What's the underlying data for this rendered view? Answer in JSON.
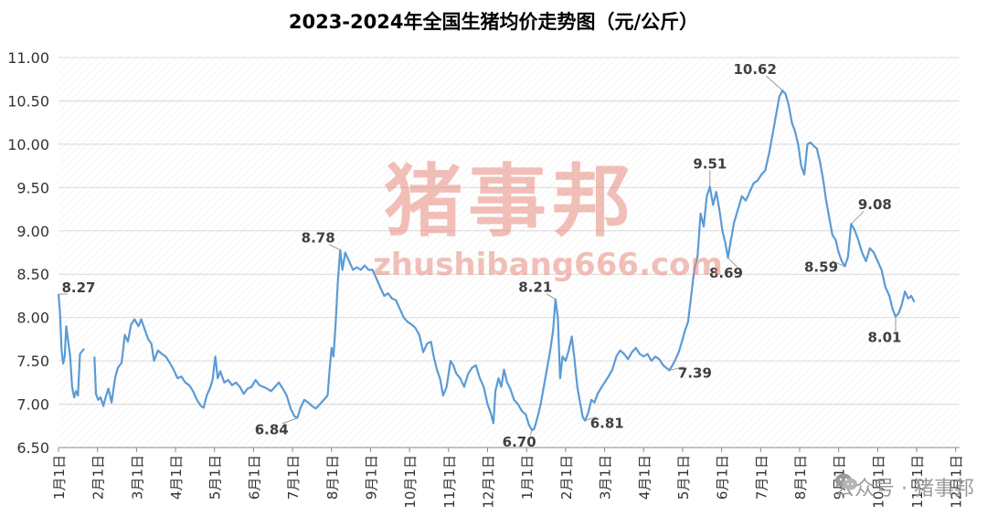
{
  "page": {
    "title": "2023-2024年全国生猪均价走势图（元/公斤）"
  },
  "watermark": {
    "text": "猪事邦",
    "url": "zhushibang666.com"
  },
  "wechat": {
    "label": "公众号 · 猪事邦",
    "icon": "wechat-icon"
  },
  "colors": {
    "line": "#5b9bd5",
    "grid": "#d9d9d9",
    "watermark": "#e98b7f"
  },
  "chart_data": {
    "type": "line",
    "title": "2023-2024年全国生猪均价走势图（元/公斤）",
    "xlabel": "",
    "ylabel": "",
    "ylim": [
      6.5,
      11.0
    ],
    "yticks": [
      "6.50",
      "7.00",
      "7.50",
      "8.00",
      "8.50",
      "9.00",
      "9.50",
      "10.00",
      "10.50",
      "11.00"
    ],
    "grid": true,
    "x_tick_labels": [
      "1月1日",
      "2月1日",
      "3月1日",
      "4月1日",
      "5月1日",
      "6月1日",
      "7月1日",
      "8月1日",
      "9月1日",
      "10月1日",
      "11月1日",
      "12月1日",
      "1月1日",
      "2月1日",
      "3月1日",
      "4月1日",
      "5月1日",
      "6月1日",
      "7月1日",
      "8月1日",
      "9月1日",
      "10月1日",
      "11月1日",
      "12月1日"
    ],
    "month_positions": [
      0,
      1,
      2,
      3,
      4,
      5,
      6,
      7,
      8,
      9,
      10,
      11,
      12,
      13,
      14,
      15,
      16,
      17,
      18,
      19,
      20,
      21,
      22,
      23
    ],
    "series": [
      {
        "values": [
          [
            0.0,
            8.27
          ],
          [
            0.04,
            8.05
          ],
          [
            0.08,
            7.62
          ],
          [
            0.12,
            7.47
          ],
          [
            0.16,
            7.55
          ],
          [
            0.2,
            7.9
          ],
          [
            0.25,
            7.72
          ],
          [
            0.3,
            7.55
          ],
          [
            0.35,
            7.2
          ],
          [
            0.4,
            7.08
          ],
          [
            0.45,
            7.15
          ],
          [
            0.5,
            7.1
          ],
          [
            0.55,
            7.58
          ],
          [
            0.62,
            7.62
          ],
          [
            0.66,
            7.64
          ],
          [
            0.92,
            7.55
          ],
          [
            0.96,
            7.12
          ],
          [
            1.02,
            7.05
          ],
          [
            1.08,
            7.08
          ],
          [
            1.15,
            6.98
          ],
          [
            1.22,
            7.1
          ],
          [
            1.28,
            7.18
          ],
          [
            1.36,
            7.02
          ],
          [
            1.45,
            7.3
          ],
          [
            1.52,
            7.42
          ],
          [
            1.62,
            7.48
          ],
          [
            1.7,
            7.8
          ],
          [
            1.78,
            7.72
          ],
          [
            1.86,
            7.92
          ],
          [
            1.95,
            7.98
          ],
          [
            2.05,
            7.9
          ],
          [
            2.12,
            7.98
          ],
          [
            2.22,
            7.85
          ],
          [
            2.3,
            7.75
          ],
          [
            2.38,
            7.7
          ],
          [
            2.45,
            7.5
          ],
          [
            2.55,
            7.62
          ],
          [
            2.65,
            7.58
          ],
          [
            2.75,
            7.55
          ],
          [
            2.85,
            7.48
          ],
          [
            2.95,
            7.4
          ],
          [
            3.05,
            7.3
          ],
          [
            3.15,
            7.32
          ],
          [
            3.25,
            7.25
          ],
          [
            3.35,
            7.22
          ],
          [
            3.45,
            7.15
          ],
          [
            3.55,
            7.05
          ],
          [
            3.65,
            6.98
          ],
          [
            3.72,
            6.96
          ],
          [
            3.8,
            7.1
          ],
          [
            3.88,
            7.18
          ],
          [
            3.95,
            7.28
          ],
          [
            4.02,
            7.55
          ],
          [
            4.08,
            7.3
          ],
          [
            4.15,
            7.38
          ],
          [
            4.25,
            7.25
          ],
          [
            4.35,
            7.28
          ],
          [
            4.45,
            7.22
          ],
          [
            4.55,
            7.25
          ],
          [
            4.65,
            7.2
          ],
          [
            4.75,
            7.12
          ],
          [
            4.85,
            7.18
          ],
          [
            4.95,
            7.2
          ],
          [
            5.05,
            7.28
          ],
          [
            5.15,
            7.22
          ],
          [
            5.25,
            7.2
          ],
          [
            5.35,
            7.18
          ],
          [
            5.45,
            7.15
          ],
          [
            5.55,
            7.2
          ],
          [
            5.65,
            7.25
          ],
          [
            5.75,
            7.18
          ],
          [
            5.85,
            7.1
          ],
          [
            5.95,
            6.95
          ],
          [
            6.05,
            6.86
          ],
          [
            6.12,
            6.84
          ],
          [
            6.2,
            6.95
          ],
          [
            6.3,
            7.05
          ],
          [
            6.4,
            7.02
          ],
          [
            6.5,
            6.98
          ],
          [
            6.6,
            6.95
          ],
          [
            6.7,
            7.0
          ],
          [
            6.8,
            7.05
          ],
          [
            6.9,
            7.1
          ],
          [
            6.95,
            7.4
          ],
          [
            7.0,
            7.65
          ],
          [
            7.05,
            7.55
          ],
          [
            7.1,
            7.9
          ],
          [
            7.16,
            8.4
          ],
          [
            7.22,
            8.78
          ],
          [
            7.28,
            8.55
          ],
          [
            7.35,
            8.75
          ],
          [
            7.45,
            8.65
          ],
          [
            7.55,
            8.55
          ],
          [
            7.65,
            8.58
          ],
          [
            7.75,
            8.55
          ],
          [
            7.85,
            8.6
          ],
          [
            7.95,
            8.55
          ],
          [
            8.05,
            8.55
          ],
          [
            8.15,
            8.45
          ],
          [
            8.25,
            8.35
          ],
          [
            8.35,
            8.25
          ],
          [
            8.45,
            8.28
          ],
          [
            8.55,
            8.22
          ],
          [
            8.65,
            8.2
          ],
          [
            8.75,
            8.1
          ],
          [
            8.85,
            8.0
          ],
          [
            8.95,
            7.95
          ],
          [
            9.05,
            7.92
          ],
          [
            9.15,
            7.88
          ],
          [
            9.25,
            7.8
          ],
          [
            9.35,
            7.6
          ],
          [
            9.45,
            7.7
          ],
          [
            9.55,
            7.72
          ],
          [
            9.62,
            7.55
          ],
          [
            9.7,
            7.4
          ],
          [
            9.78,
            7.3
          ],
          [
            9.86,
            7.1
          ],
          [
            9.95,
            7.2
          ],
          [
            10.05,
            7.5
          ],
          [
            10.12,
            7.45
          ],
          [
            10.2,
            7.35
          ],
          [
            10.3,
            7.3
          ],
          [
            10.4,
            7.2
          ],
          [
            10.5,
            7.35
          ],
          [
            10.6,
            7.42
          ],
          [
            10.7,
            7.45
          ],
          [
            10.8,
            7.3
          ],
          [
            10.9,
            7.2
          ],
          [
            11.0,
            7.0
          ],
          [
            11.08,
            6.9
          ],
          [
            11.15,
            6.78
          ],
          [
            11.2,
            7.15
          ],
          [
            11.28,
            7.3
          ],
          [
            11.35,
            7.2
          ],
          [
            11.42,
            7.4
          ],
          [
            11.5,
            7.25
          ],
          [
            11.58,
            7.18
          ],
          [
            11.68,
            7.05
          ],
          [
            11.78,
            7.0
          ],
          [
            11.88,
            6.92
          ],
          [
            11.98,
            6.88
          ],
          [
            12.06,
            6.76
          ],
          [
            12.14,
            6.7
          ],
          [
            12.2,
            6.72
          ],
          [
            12.28,
            6.85
          ],
          [
            12.36,
            7.0
          ],
          [
            12.44,
            7.2
          ],
          [
            12.52,
            7.4
          ],
          [
            12.6,
            7.6
          ],
          [
            12.68,
            7.85
          ],
          [
            12.74,
            8.21
          ],
          [
            12.8,
            8.0
          ],
          [
            12.86,
            7.3
          ],
          [
            12.92,
            7.55
          ],
          [
            13.0,
            7.5
          ],
          [
            13.08,
            7.62
          ],
          [
            13.16,
            7.78
          ],
          [
            13.22,
            7.55
          ],
          [
            13.3,
            7.2
          ],
          [
            13.38,
            7.0
          ],
          [
            13.44,
            6.85
          ],
          [
            13.5,
            6.81
          ],
          [
            13.58,
            6.9
          ],
          [
            13.66,
            7.05
          ],
          [
            13.74,
            7.02
          ],
          [
            13.82,
            7.12
          ],
          [
            13.9,
            7.18
          ],
          [
            14.0,
            7.25
          ],
          [
            14.1,
            7.32
          ],
          [
            14.2,
            7.4
          ],
          [
            14.3,
            7.55
          ],
          [
            14.4,
            7.62
          ],
          [
            14.5,
            7.58
          ],
          [
            14.6,
            7.52
          ],
          [
            14.7,
            7.6
          ],
          [
            14.8,
            7.65
          ],
          [
            14.9,
            7.58
          ],
          [
            15.0,
            7.55
          ],
          [
            15.1,
            7.58
          ],
          [
            15.2,
            7.5
          ],
          [
            15.3,
            7.55
          ],
          [
            15.4,
            7.52
          ],
          [
            15.5,
            7.45
          ],
          [
            15.58,
            7.42
          ],
          [
            15.66,
            7.39
          ],
          [
            15.74,
            7.45
          ],
          [
            15.82,
            7.52
          ],
          [
            15.9,
            7.6
          ],
          [
            15.98,
            7.72
          ],
          [
            16.06,
            7.85
          ],
          [
            16.14,
            7.95
          ],
          [
            16.22,
            8.25
          ],
          [
            16.3,
            8.55
          ],
          [
            16.38,
            8.7
          ],
          [
            16.46,
            9.2
          ],
          [
            16.54,
            9.05
          ],
          [
            16.62,
            9.4
          ],
          [
            16.7,
            9.51
          ],
          [
            16.78,
            9.3
          ],
          [
            16.86,
            9.45
          ],
          [
            16.94,
            9.25
          ],
          [
            17.02,
            9.0
          ],
          [
            17.1,
            8.85
          ],
          [
            17.16,
            8.69
          ],
          [
            17.24,
            8.9
          ],
          [
            17.32,
            9.1
          ],
          [
            17.42,
            9.25
          ],
          [
            17.52,
            9.4
          ],
          [
            17.62,
            9.35
          ],
          [
            17.72,
            9.45
          ],
          [
            17.82,
            9.55
          ],
          [
            17.92,
            9.58
          ],
          [
            18.02,
            9.65
          ],
          [
            18.12,
            9.7
          ],
          [
            18.22,
            9.9
          ],
          [
            18.32,
            10.15
          ],
          [
            18.4,
            10.35
          ],
          [
            18.48,
            10.55
          ],
          [
            18.56,
            10.62
          ],
          [
            18.64,
            10.58
          ],
          [
            18.72,
            10.45
          ],
          [
            18.8,
            10.25
          ],
          [
            18.88,
            10.15
          ],
          [
            18.96,
            10.0
          ],
          [
            19.04,
            9.75
          ],
          [
            19.12,
            9.65
          ],
          [
            19.2,
            10.0
          ],
          [
            19.28,
            10.02
          ],
          [
            19.36,
            9.98
          ],
          [
            19.44,
            9.95
          ],
          [
            19.52,
            9.8
          ],
          [
            19.6,
            9.6
          ],
          [
            19.68,
            9.35
          ],
          [
            19.76,
            9.15
          ],
          [
            19.84,
            8.95
          ],
          [
            19.92,
            8.9
          ],
          [
            20.0,
            8.75
          ],
          [
            20.08,
            8.65
          ],
          [
            20.16,
            8.59
          ],
          [
            20.24,
            8.7
          ],
          [
            20.32,
            9.08
          ],
          [
            20.4,
            9.02
          ],
          [
            20.5,
            8.9
          ],
          [
            20.6,
            8.75
          ],
          [
            20.7,
            8.65
          ],
          [
            20.8,
            8.8
          ],
          [
            20.9,
            8.75
          ],
          [
            21.0,
            8.65
          ],
          [
            21.1,
            8.55
          ],
          [
            21.2,
            8.35
          ],
          [
            21.3,
            8.25
          ],
          [
            21.38,
            8.1
          ],
          [
            21.46,
            8.01
          ],
          [
            21.54,
            8.05
          ],
          [
            21.62,
            8.15
          ],
          [
            21.7,
            8.3
          ],
          [
            21.78,
            8.22
          ],
          [
            21.86,
            8.25
          ],
          [
            21.94,
            8.18
          ]
        ]
      }
    ],
    "annotations": [
      {
        "x": 0.0,
        "y": 8.27,
        "label": "8.27"
      },
      {
        "x": 7.22,
        "y": 8.78,
        "label": "8.78"
      },
      {
        "x": 6.12,
        "y": 6.84,
        "label": "6.84"
      },
      {
        "x": 12.14,
        "y": 6.7,
        "label": "6.70"
      },
      {
        "x": 12.74,
        "y": 8.21,
        "label": "8.21"
      },
      {
        "x": 13.5,
        "y": 6.81,
        "label": "6.81"
      },
      {
        "x": 15.66,
        "y": 7.39,
        "label": "7.39"
      },
      {
        "x": 16.7,
        "y": 9.51,
        "label": "9.51"
      },
      {
        "x": 17.16,
        "y": 8.69,
        "label": "8.69"
      },
      {
        "x": 18.56,
        "y": 10.62,
        "label": "10.62"
      },
      {
        "x": 20.16,
        "y": 8.59,
        "label": "8.59"
      },
      {
        "x": 20.32,
        "y": 9.08,
        "label": "9.08"
      },
      {
        "x": 21.46,
        "y": 8.01,
        "label": "8.01"
      }
    ]
  }
}
